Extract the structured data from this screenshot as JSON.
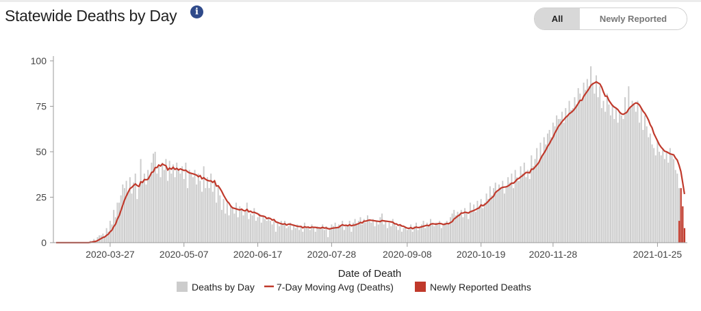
{
  "header": {
    "title": "Statewide Deaths by Day",
    "info_icon": "i",
    "toggle": {
      "all": "All",
      "newly": "Newly Reported",
      "selected": "All"
    }
  },
  "colors": {
    "bars": "#cccccc",
    "avg": "#c0392b",
    "newly": "#c0392b"
  },
  "chart_data": {
    "type": "bar",
    "title": "Statewide Deaths by Day",
    "xlabel": "Date of Death",
    "ylabel": "",
    "ylim": [
      0,
      100
    ],
    "yticks": [
      0,
      25,
      50,
      75,
      100
    ],
    "start_date": "2020-02-26",
    "xticks": [
      "2020-03-27",
      "2020-05-07",
      "2020-06-17",
      "2020-07-28",
      "2020-09-08",
      "2020-10-19",
      "2020-11-28",
      "2021-01-25"
    ],
    "xtick_index": [
      30,
      71,
      112,
      153,
      195,
      236,
      276,
      334
    ],
    "legend": {
      "placement": "bottom",
      "items": [
        "Deaths by Day",
        "7-Day Moving Avg (Deaths)",
        "Newly Reported Deaths"
      ]
    },
    "series": [
      {
        "name": "Deaths by Day",
        "values": [
          0,
          0,
          0,
          0,
          0,
          0,
          0,
          0,
          0,
          0,
          0,
          0,
          0,
          0,
          0,
          0,
          0,
          0,
          0,
          1,
          1,
          2,
          1,
          3,
          4,
          4,
          5,
          3,
          8,
          6,
          12,
          10,
          18,
          14,
          22,
          22,
          26,
          32,
          30,
          34,
          28,
          36,
          27,
          33,
          38,
          24,
          30,
          46,
          34,
          38,
          32,
          40,
          36,
          44,
          49,
          50,
          38,
          42,
          36,
          44,
          40,
          46,
          34,
          45,
          38,
          43,
          36,
          44,
          40,
          38,
          42,
          35,
          44,
          30,
          40,
          38,
          36,
          40,
          32,
          38,
          34,
          28,
          42,
          30,
          36,
          30,
          38,
          28,
          34,
          22,
          31,
          26,
          18,
          24,
          16,
          22,
          15,
          20,
          19,
          16,
          22,
          14,
          20,
          18,
          15,
          17,
          22,
          13,
          16,
          15,
          19,
          12,
          14,
          16,
          11,
          15,
          13,
          12,
          14,
          12,
          10,
          13,
          6,
          11,
          9,
          12,
          10,
          12,
          8,
          9,
          11,
          7,
          10,
          8,
          10,
          7,
          9,
          6,
          11,
          8,
          9,
          7,
          10,
          8,
          6,
          9,
          8,
          8,
          10,
          7,
          9,
          3,
          8,
          10,
          9,
          11,
          8,
          10,
          9,
          12,
          7,
          10,
          9,
          12,
          6,
          11,
          13,
          10,
          12,
          14,
          10,
          13,
          11,
          15,
          12,
          11,
          13,
          9,
          12,
          10,
          14,
          16,
          10,
          12,
          8,
          11,
          9,
          13,
          10,
          9,
          7,
          10,
          6,
          8,
          9,
          7,
          8,
          10,
          6,
          9,
          11,
          7,
          8,
          10,
          12,
          8,
          11,
          9,
          13,
          10,
          9,
          11,
          10,
          12,
          8,
          10,
          11,
          12,
          10,
          14,
          16,
          18,
          15,
          17,
          16,
          18,
          14,
          19,
          17,
          13,
          22,
          18,
          21,
          17,
          23,
          20,
          24,
          19,
          22,
          27,
          24,
          31,
          26,
          30,
          33,
          28,
          32,
          30,
          34,
          27,
          31,
          36,
          33,
          38,
          30,
          40,
          36,
          34,
          42,
          38,
          44,
          36,
          40,
          35,
          48,
          42,
          46,
          52,
          44,
          55,
          48,
          58,
          54,
          60,
          62,
          58,
          66,
          64,
          70,
          68,
          68,
          72,
          66,
          74,
          70,
          78,
          73,
          74,
          80,
          76,
          85,
          82,
          78,
          88,
          84,
          90,
          86,
          97,
          88,
          82,
          92,
          80,
          86,
          74,
          78,
          72,
          82,
          76,
          70,
          76,
          68,
          74,
          66,
          72,
          70,
          68,
          80,
          72,
          86,
          74,
          78,
          76,
          72,
          78,
          66,
          74,
          62,
          70,
          64,
          58,
          60,
          54,
          52,
          48,
          56,
          50,
          48,
          52,
          46,
          50,
          44,
          52,
          48,
          46,
          40,
          38,
          30,
          20,
          10,
          3
        ]
      },
      {
        "name": "7-Day Moving Avg (Deaths)",
        "derived_from": "Deaths by Day"
      },
      {
        "name": "Newly Reported Deaths",
        "last_days": [
          12,
          30,
          20,
          8
        ]
      }
    ]
  }
}
